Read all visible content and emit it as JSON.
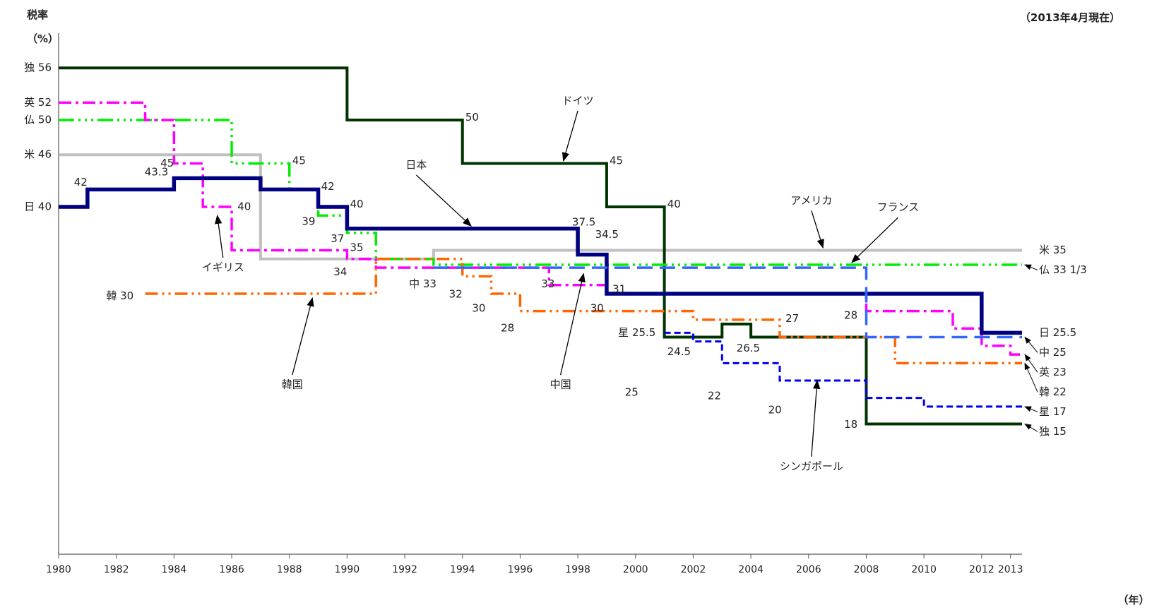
{
  "chart_data": {
    "type": "line",
    "step": true,
    "ylabel": "税率",
    "yunit": "（%）",
    "xunit": "（年）",
    "note": "（2013年4月現在）",
    "xlim": [
      1980,
      2013.4
    ],
    "ylim": [
      0,
      60
    ],
    "grid": false,
    "x_ticks": [
      "1980",
      "1982",
      "1984",
      "1986",
      "1988",
      "1990",
      "1992",
      "1994",
      "1996",
      "1998",
      "2000",
      "2002",
      "2004",
      "2006",
      "2008",
      "2010",
      "2012",
      "2013"
    ],
    "start_labels": [
      {
        "text": "独 56",
        "series": "germany"
      },
      {
        "text": "英 52",
        "series": "uk"
      },
      {
        "text": "仏 50",
        "series": "france"
      },
      {
        "text": "米 46",
        "series": "usa"
      },
      {
        "text": "日 40",
        "series": "japan"
      }
    ],
    "end_labels": [
      {
        "text": "米 35",
        "series": "usa"
      },
      {
        "text": "仏 33 1/3",
        "series": "france"
      },
      {
        "text": "日 25.5",
        "series": "japan"
      },
      {
        "text": "中 25",
        "series": "china"
      },
      {
        "text": "英 23",
        "series": "uk"
      },
      {
        "text": "韓 22",
        "series": "korea"
      },
      {
        "text": "星 17",
        "series": "singapore"
      },
      {
        "text": "独 15",
        "series": "germany"
      }
    ],
    "series": [
      {
        "name": "アメリカ",
        "key": "usa",
        "color": "#c0c0c0",
        "points": [
          [
            1980,
            46
          ],
          [
            1987,
            34
          ],
          [
            1993,
            35
          ],
          [
            2013.4,
            35
          ]
        ]
      },
      {
        "name": "ドイツ",
        "key": "germany",
        "color": "#003300",
        "points": [
          [
            1980,
            56
          ],
          [
            1990,
            50
          ],
          [
            1994,
            45
          ],
          [
            1999,
            40
          ],
          [
            2001,
            25
          ],
          [
            2003,
            26.5
          ],
          [
            2004,
            25
          ],
          [
            2008,
            15
          ],
          [
            2013.4,
            15
          ]
        ]
      },
      {
        "name": "フランス",
        "key": "france",
        "color": "#00ee00",
        "points": [
          [
            1980,
            50
          ],
          [
            1986,
            45
          ],
          [
            1988,
            42
          ],
          [
            1989,
            39
          ],
          [
            1990,
            37
          ],
          [
            1991,
            34
          ],
          [
            1993,
            33.33
          ],
          [
            2013.4,
            33.33
          ]
        ]
      },
      {
        "name": "イギリス",
        "key": "uk",
        "color": "#ff00ff",
        "points": [
          [
            1980,
            52
          ],
          [
            1983,
            50
          ],
          [
            1984,
            45
          ],
          [
            1985,
            40
          ],
          [
            1986,
            35
          ],
          [
            1990,
            34
          ],
          [
            1991,
            33
          ],
          [
            1993,
            33
          ],
          [
            1997,
            31
          ],
          [
            1999,
            30
          ],
          [
            2008,
            28
          ],
          [
            2011,
            26
          ],
          [
            2012,
            24
          ],
          [
            2013,
            23
          ],
          [
            2013.4,
            23
          ]
        ]
      },
      {
        "name": "日本",
        "key": "japan",
        "color": "#000080",
        "points": [
          [
            1980,
            40
          ],
          [
            1981,
            42
          ],
          [
            1984,
            43.3
          ],
          [
            1987,
            42
          ],
          [
            1989,
            40
          ],
          [
            1990,
            37.5
          ],
          [
            1998,
            34.5
          ],
          [
            1999,
            30
          ],
          [
            2012,
            25.5
          ],
          [
            2013.4,
            25.5
          ]
        ]
      },
      {
        "name": "韓国",
        "key": "korea",
        "color": "#ff6600",
        "points": [
          [
            1983,
            30
          ],
          [
            1991,
            34
          ],
          [
            1994,
            32
          ],
          [
            1995,
            30
          ],
          [
            1996,
            28
          ],
          [
            2002,
            27
          ],
          [
            2005,
            25
          ],
          [
            2009,
            22
          ],
          [
            2013.4,
            22
          ]
        ]
      },
      {
        "name": "中国",
        "key": "china",
        "color": "#3366ff",
        "points": [
          [
            1993,
            33
          ],
          [
            2008,
            25
          ],
          [
            2013.4,
            25
          ]
        ]
      },
      {
        "name": "シンガポール",
        "key": "singapore",
        "color": "#0000ee",
        "points": [
          [
            2001,
            25.5
          ],
          [
            2002,
            24.5
          ],
          [
            2003,
            22
          ],
          [
            2005,
            20
          ],
          [
            2008,
            18
          ],
          [
            2010,
            17
          ],
          [
            2013.4,
            17
          ]
        ]
      }
    ],
    "annotations": [
      {
        "text": "50",
        "x": 1994.1,
        "y": 50.3,
        "anchor": "start"
      },
      {
        "text": "45",
        "x": 1999.1,
        "y": 45.3,
        "anchor": "start"
      },
      {
        "text": "40",
        "x": 2001.1,
        "y": 40.3,
        "anchor": "start"
      },
      {
        "text": "45",
        "x": 1988.1,
        "y": 45.3,
        "anchor": "start"
      },
      {
        "text": "42",
        "x": 1989.1,
        "y": 42.3,
        "anchor": "start"
      },
      {
        "text": "40",
        "x": 1990.1,
        "y": 40.3,
        "anchor": "start"
      },
      {
        "text": "39",
        "x": 1988.9,
        "y": 38.3,
        "anchor": "end"
      },
      {
        "text": "37",
        "x": 1989.9,
        "y": 36.3,
        "anchor": "end"
      },
      {
        "text": "35",
        "x": 1990.1,
        "y": 35.3,
        "anchor": "start"
      },
      {
        "text": "34",
        "x": 1990.0,
        "y": 32.5,
        "anchor": "end"
      },
      {
        "text": "42",
        "x": 1981.0,
        "y": 42.8,
        "anchor": "end"
      },
      {
        "text": "43.3",
        "x": 1983.8,
        "y": 44.0,
        "anchor": "end"
      },
      {
        "text": "45",
        "x": 1984.0,
        "y": 45.0,
        "anchor": "end"
      },
      {
        "text": "40",
        "x": 1986.2,
        "y": 40.0,
        "anchor": "start"
      },
      {
        "text": "37.5",
        "x": 1997.8,
        "y": 38.2,
        "anchor": "start"
      },
      {
        "text": "34.5",
        "x": 1998.6,
        "y": 36.8,
        "anchor": "start"
      },
      {
        "text": "33",
        "x": 1997.2,
        "y": 31.1,
        "anchor": "end"
      },
      {
        "text": "31",
        "x": 1999.2,
        "y": 30.5,
        "anchor": "start"
      },
      {
        "text": "30",
        "x": 1998.9,
        "y": 28.3,
        "anchor": "end"
      },
      {
        "text": "中 33",
        "x": 1993.1,
        "y": 31.1,
        "anchor": "end"
      },
      {
        "text": "32",
        "x": 1994.0,
        "y": 29.9,
        "anchor": "end"
      },
      {
        "text": "30",
        "x": 1994.8,
        "y": 28.3,
        "anchor": "end"
      },
      {
        "text": "28",
        "x": 1995.8,
        "y": 26.0,
        "anchor": "end"
      },
      {
        "text": "27",
        "x": 2005.2,
        "y": 27.1,
        "anchor": "start"
      },
      {
        "text": "星 25.5",
        "x": 2000.7,
        "y": 25.5,
        "anchor": "end"
      },
      {
        "text": "24.5",
        "x": 2001.1,
        "y": 23.3,
        "anchor": "start"
      },
      {
        "text": "26.5",
        "x": 2003.5,
        "y": 23.7,
        "anchor": "start"
      },
      {
        "text": "25",
        "x": 2000.1,
        "y": 18.6,
        "anchor": "end"
      },
      {
        "text": "22",
        "x": 2002.5,
        "y": 18.2,
        "anchor": "start"
      },
      {
        "text": "20",
        "x": 2004.6,
        "y": 16.6,
        "anchor": "start"
      },
      {
        "text": "28",
        "x": 2007.7,
        "y": 27.5,
        "anchor": "end"
      },
      {
        "text": "18",
        "x": 2007.7,
        "y": 14.9,
        "anchor": "end"
      },
      {
        "text": "韓 30",
        "x": 1982.6,
        "y": 29.7,
        "anchor": "end"
      }
    ],
    "callouts": [
      {
        "text": "ドイツ",
        "tx": 1998.0,
        "ty": 52.2,
        "ax": 1997.5,
        "ay": 45.3
      },
      {
        "text": "日本",
        "tx": 1992.4,
        "ty": 44.8,
        "ax": 1994.3,
        "ay": 37.8
      },
      {
        "text": "アメリカ",
        "tx": 2006.1,
        "ty": 40.7,
        "ax": 2006.5,
        "ay": 35.3
      },
      {
        "text": "フランス",
        "tx": 2009.1,
        "ty": 39.9,
        "ax": 2007.5,
        "ay": 33.6
      },
      {
        "text": "イギリス",
        "tx": 1985.7,
        "ty": 33.0,
        "ax": 1985.5,
        "ay": 39.0
      },
      {
        "text": "中国",
        "tx": 1997.4,
        "ty": 19.5,
        "ax": 1998.2,
        "ay": 32.3
      },
      {
        "text": "韓国",
        "tx": 1988.1,
        "ty": 19.5,
        "ax": 1988.8,
        "ay": 29.5
      },
      {
        "text": "シンガポール",
        "tx": 2006.1,
        "ty": 10.1,
        "ax": 2006.3,
        "ay": 20.0
      }
    ]
  }
}
